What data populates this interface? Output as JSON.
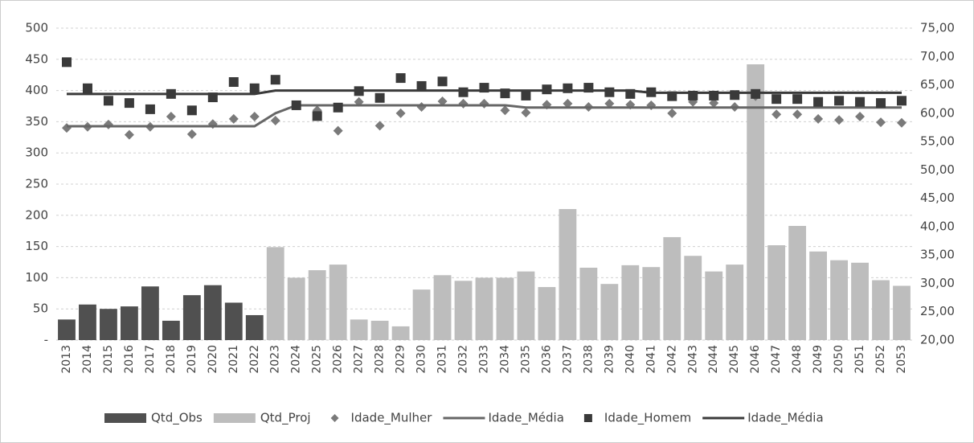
{
  "chart_data": {
    "type": "bar",
    "categories": [
      "2013",
      "2014",
      "2015",
      "2016",
      "2017",
      "2018",
      "2019",
      "2020",
      "2021",
      "2022",
      "2023",
      "2024",
      "2025",
      "2026",
      "2027",
      "2028",
      "2029",
      "2030",
      "2031",
      "2032",
      "2033",
      "2034",
      "2035",
      "2036",
      "2037",
      "2038",
      "2039",
      "2040",
      "2041",
      "2042",
      "2043",
      "2044",
      "2045",
      "2046",
      "2047",
      "2048",
      "2049",
      "2050",
      "2051",
      "2052",
      "2053"
    ],
    "series": [
      {
        "name": "Qtd_Obs",
        "type": "bar",
        "color": "#505050",
        "values": [
          33,
          57,
          50,
          54,
          86,
          31,
          72,
          88,
          60,
          40,
          null,
          null,
          null,
          null,
          null,
          null,
          null,
          null,
          null,
          null,
          null,
          null,
          null,
          null,
          null,
          null,
          null,
          null,
          null,
          null,
          null,
          null,
          null,
          null,
          null,
          null,
          null,
          null,
          null,
          null,
          null
        ]
      },
      {
        "name": "Qtd_Proj",
        "type": "bar",
        "color": "#bdbdbd",
        "values": [
          null,
          null,
          null,
          null,
          null,
          null,
          null,
          null,
          null,
          null,
          149,
          100,
          112,
          121,
          33,
          31,
          22,
          81,
          104,
          95,
          100,
          100,
          110,
          85,
          210,
          116,
          90,
          120,
          117,
          165,
          135,
          110,
          121,
          442,
          152,
          183,
          142,
          128,
          124,
          96,
          87
        ]
      },
      {
        "name": "Idade_Mulher",
        "type": "scatter",
        "marker": "diamond",
        "axis": "y2",
        "color": "#7a7a7a",
        "values": [
          57.4,
          57.6,
          58.0,
          56.2,
          57.6,
          59.4,
          56.3,
          58.1,
          59.0,
          59.4,
          58.7,
          61.4,
          60.5,
          56.9,
          62.0,
          57.8,
          60.0,
          61.1,
          62.1,
          61.7,
          61.7,
          60.5,
          60.1,
          61.5,
          61.7,
          61.1,
          61.7,
          61.5,
          61.4,
          60.0,
          62.0,
          61.8,
          61.1,
          63.0,
          59.8,
          59.8,
          59.0,
          58.8,
          59.4,
          58.4,
          58.3
        ]
      },
      {
        "name": "Idade_Média",
        "type": "line",
        "axis": "y2",
        "color": "#666666",
        "values": [
          57.7,
          57.7,
          57.7,
          57.7,
          57.7,
          57.7,
          57.7,
          57.7,
          57.7,
          57.7,
          60.0,
          61.4,
          61.4,
          61.4,
          61.4,
          61.4,
          61.4,
          61.4,
          61.4,
          61.4,
          61.4,
          61.4,
          61.0,
          61.0,
          61.0,
          61.0,
          61.0,
          61.0,
          61.0,
          61.0,
          61.0,
          61.0,
          61.0,
          61.0,
          61.0,
          61.0,
          61.0,
          61.0,
          61.0,
          61.0,
          61.0
        ]
      },
      {
        "name": "Idade_Homem",
        "type": "scatter",
        "marker": "square",
        "axis": "y2",
        "color": "#3a3a3a",
        "values": [
          69.0,
          64.4,
          62.2,
          61.8,
          60.7,
          63.4,
          60.5,
          62.8,
          65.5,
          64.4,
          65.9,
          61.4,
          59.5,
          61.0,
          63.9,
          62.7,
          66.2,
          64.8,
          65.6,
          63.7,
          64.5,
          63.5,
          63.1,
          64.2,
          64.4,
          64.5,
          63.7,
          63.4,
          63.7,
          63.0,
          63.1,
          63.1,
          63.2,
          63.4,
          62.5,
          62.5,
          62.0,
          62.2,
          62.0,
          61.8,
          62.2
        ]
      },
      {
        "name": "Idade_Média",
        "type": "line",
        "axis": "y2",
        "color": "#3a3a3a",
        "values": [
          63.4,
          63.4,
          63.4,
          63.4,
          63.4,
          63.4,
          63.4,
          63.4,
          63.4,
          63.4,
          64.0,
          64.0,
          64.0,
          64.0,
          64.0,
          64.0,
          64.0,
          64.0,
          64.0,
          64.0,
          64.0,
          64.0,
          64.0,
          64.0,
          64.0,
          64.0,
          64.0,
          64.0,
          63.6,
          63.6,
          63.6,
          63.6,
          63.6,
          63.6,
          63.6,
          63.6,
          63.6,
          63.6,
          63.6,
          63.6,
          63.6
        ]
      }
    ],
    "ylim": [
      0,
      500
    ],
    "yticks": [
      {
        "value": 0,
        "label": "-"
      },
      50,
      100,
      150,
      200,
      250,
      300,
      350,
      400,
      450,
      500
    ],
    "y2lim": [
      20,
      75
    ],
    "y2ticks": [
      {
        "value": 20,
        "label": "20,00"
      },
      {
        "value": 25,
        "label": "25,00"
      },
      {
        "value": 30,
        "label": "30,00"
      },
      {
        "value": 35,
        "label": "35,00"
      },
      {
        "value": 40,
        "label": "40,00"
      },
      {
        "value": 45,
        "label": "45,00"
      },
      {
        "value": 50,
        "label": "50,00"
      },
      {
        "value": 55,
        "label": "55,00"
      },
      {
        "value": 60,
        "label": "60,00"
      },
      {
        "value": 65,
        "label": "65,00"
      },
      {
        "value": 70,
        "label": "70,00"
      },
      {
        "value": 75,
        "label": "75,00"
      }
    ],
    "grid": true,
    "legend": "bottom"
  }
}
